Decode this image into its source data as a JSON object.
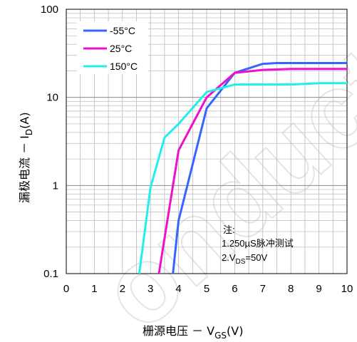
{
  "chart_data": {
    "type": "line",
    "xlabel_main": "栅源电压 － V",
    "xlabel_sub": "GS",
    "xlabel_unit": "(V)",
    "ylabel_main": "漏极电流 － I",
    "ylabel_sub": "D",
    "ylabel_unit": "(A)",
    "xlim": [
      0,
      10
    ],
    "ylim": [
      0.1,
      100
    ],
    "yscale": "log",
    "grid": true,
    "x_ticks": [
      "0",
      "1",
      "2",
      "3",
      "4",
      "5",
      "6",
      "7",
      "8",
      "9",
      "10"
    ],
    "y_ticks": [
      {
        "value": 0.1,
        "label": "0.1"
      },
      {
        "value": 1,
        "label": "1"
      },
      {
        "value": 10,
        "label": "10"
      },
      {
        "value": 100,
        "label": "100"
      }
    ],
    "legend_position": "top-left",
    "series": [
      {
        "name": "-55°C",
        "color": "#3366ff",
        "points": [
          [
            3.8,
            0.1
          ],
          [
            4.0,
            0.4
          ],
          [
            5.0,
            7.5
          ],
          [
            6.0,
            19
          ],
          [
            7.0,
            24
          ],
          [
            7.5,
            24.5
          ],
          [
            10.0,
            24.5
          ]
        ]
      },
      {
        "name": "25°C",
        "color": "#ee11cc",
        "points": [
          [
            3.3,
            0.1
          ],
          [
            4.0,
            2.5
          ],
          [
            5.0,
            10
          ],
          [
            6.0,
            19
          ],
          [
            7.0,
            20.5
          ],
          [
            8.0,
            21
          ],
          [
            10.0,
            21
          ]
        ]
      },
      {
        "name": "150°C",
        "color": "#22eeee",
        "points": [
          [
            2.6,
            0.1
          ],
          [
            3.0,
            0.95
          ],
          [
            3.5,
            3.5
          ],
          [
            4.0,
            5
          ],
          [
            5.0,
            11.5
          ],
          [
            6.0,
            14
          ],
          [
            8.0,
            14
          ],
          [
            9.0,
            14.5
          ],
          [
            10.0,
            14.5
          ]
        ]
      }
    ],
    "annotation": {
      "line1": "注:",
      "line2": "1.250µS脉冲测试",
      "line3_main": "2.V",
      "line3_sub": "DS",
      "line3_rest": "=50V"
    },
    "watermark": "onductor"
  }
}
